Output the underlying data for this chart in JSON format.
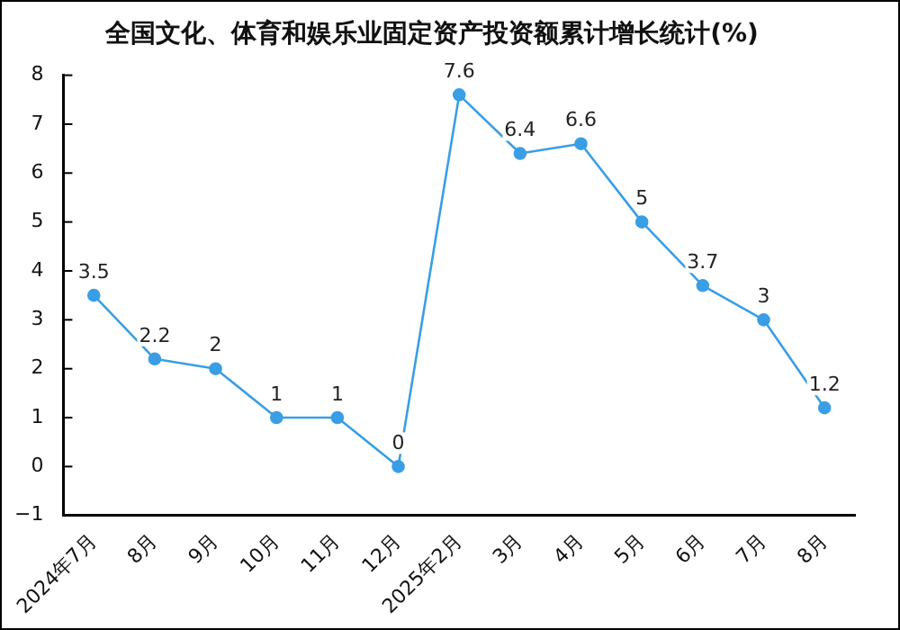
{
  "chart_data": {
    "type": "line",
    "title": "全国文化、体育和娱乐业固定资产投资额累计增长统计(%)",
    "categories": [
      "2024年7月",
      "8月",
      "9月",
      "10月",
      "11月",
      "12月",
      "2025年2月",
      "3月",
      "4月",
      "5月",
      "6月",
      "7月",
      "8月"
    ],
    "series": [
      {
        "color": "#3a9ee4",
        "values": [
          3.5,
          2.2,
          2,
          1,
          1,
          0,
          7.6,
          6.4,
          6.6,
          5,
          3.7,
          3,
          1.2
        ]
      }
    ],
    "ylim": [
      -1,
      8
    ],
    "yticks": [
      {
        "value": -1,
        "label": "−1"
      },
      0,
      1,
      2,
      3,
      4,
      5,
      6,
      7,
      8
    ],
    "grid": false,
    "legend": false,
    "marker": "circle",
    "line_style": "solid",
    "data_labels": true
  }
}
